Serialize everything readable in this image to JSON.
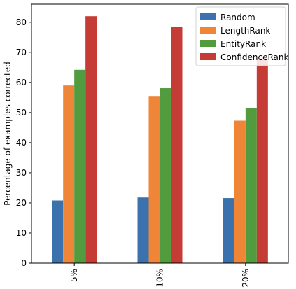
{
  "chart_data": {
    "type": "bar",
    "title": "",
    "xlabel": "",
    "ylabel": "Percentage of examples corrected",
    "categories": [
      "5%",
      "10%",
      "20%"
    ],
    "series": [
      {
        "name": "Random",
        "color": "#3b72ad",
        "values": [
          20.8,
          21.8,
          21.6
        ]
      },
      {
        "name": "LengthRank",
        "color": "#ef8637",
        "values": [
          59.0,
          55.5,
          47.3
        ]
      },
      {
        "name": "EntityRank",
        "color": "#529b3f",
        "values": [
          64.2,
          58.1,
          51.6
        ]
      },
      {
        "name": "ConfidenceRank",
        "color": "#c43c35",
        "values": [
          82.0,
          78.5,
          68.0
        ]
      }
    ],
    "ylim": [
      0,
      86
    ],
    "yticks": [
      0,
      10,
      20,
      30,
      40,
      50,
      60,
      70,
      80
    ],
    "grid": false,
    "legend_position": "top-right"
  }
}
